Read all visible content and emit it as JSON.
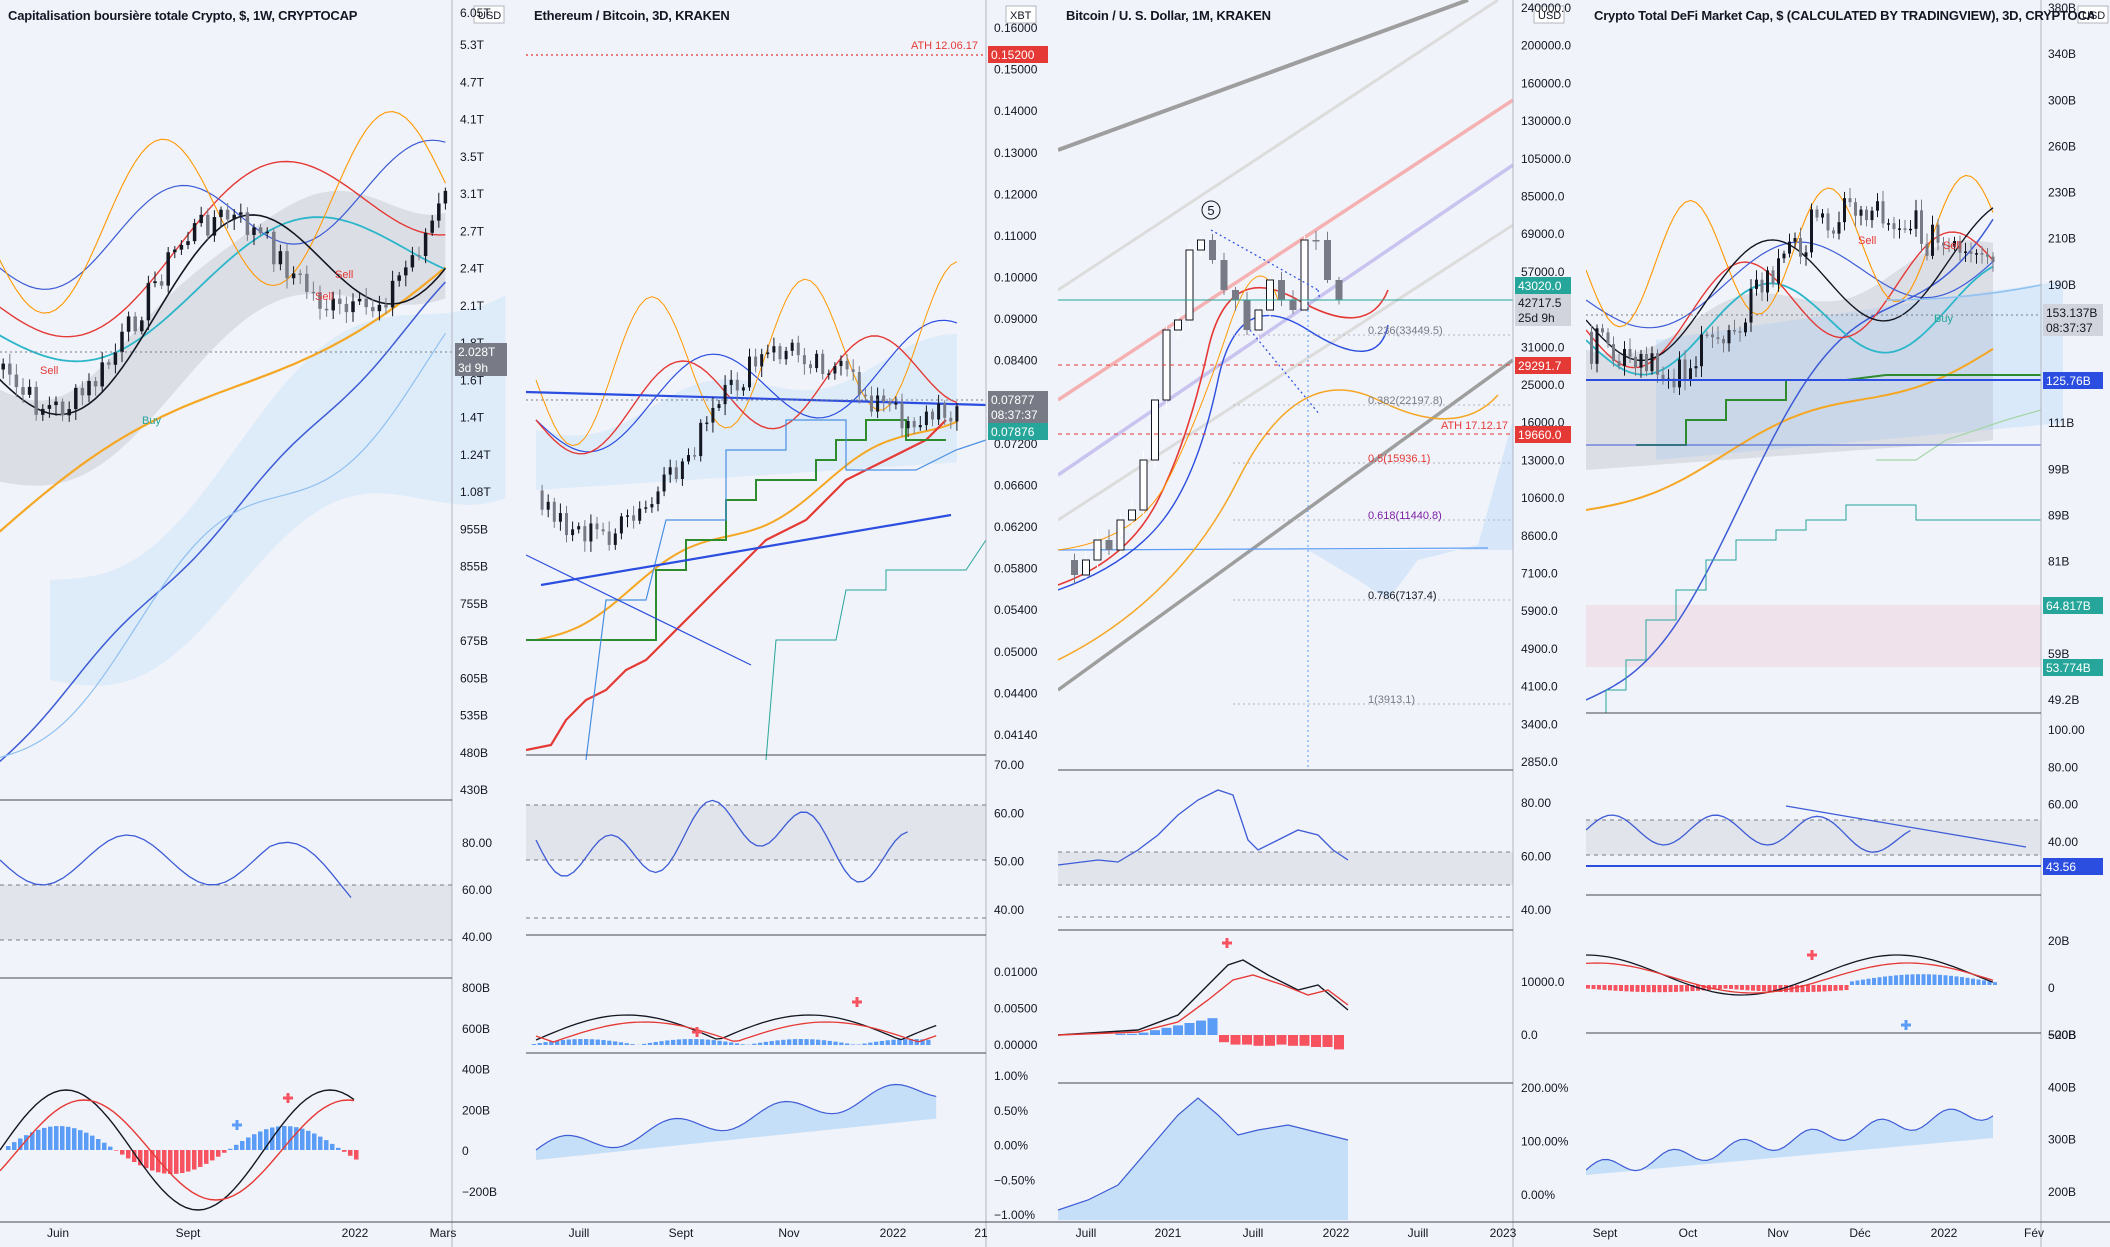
{
  "panels": [
    {
      "title": "Capitalisation boursière totale Crypto, $, 1W, CRYPTOCAP",
      "currency": "USD",
      "price_tag": "2.028T",
      "countdown": "3d 9h",
      "price_axis": [
        "6.05T",
        "5.3T",
        "4.7T",
        "4.1T",
        "3.5T",
        "3.1T",
        "2.7T",
        "2.4T",
        "2.1T",
        "1.8T",
        "1.6T",
        "1.4T",
        "1.24T",
        "1.08T",
        "955B",
        "855B",
        "755B",
        "675B",
        "605B",
        "535B",
        "480B",
        "430B"
      ],
      "osc1_axis": [
        "80.00",
        "60.00",
        "40.00"
      ],
      "osc2_axis": [
        "800B",
        "600B",
        "400B",
        "200B",
        "0",
        "−200B"
      ],
      "time_axis": [
        "Juin",
        "Sept",
        "2022",
        "Mars"
      ],
      "signals": [
        "Sell",
        "Sell",
        "Sell",
        "Buy"
      ]
    },
    {
      "title": "Ethereum / Bitcoin, 3D, KRAKEN",
      "currency": "XBT",
      "ath_label": "ATH 12.06.17",
      "ath_value": "0.15200",
      "price_tag": "0.07877",
      "countdown": "08:37:37",
      "price_tag2": "0.07876",
      "price_axis": [
        "0.16000",
        "0.15000",
        "0.14000",
        "0.13000",
        "0.12000",
        "0.11000",
        "0.10000",
        "0.09000",
        "0.08400",
        "0.07800",
        "0.07200",
        "0.06600",
        "0.06200",
        "0.05800",
        "0.05400",
        "0.05000",
        "0.04400",
        "0.04140"
      ],
      "osc1_axis": [
        "70.00",
        "60.00",
        "50.00",
        "40.00"
      ],
      "osc2_axis": [
        "0.01000",
        "0.00500",
        "0.00000"
      ],
      "osc3_axis": [
        "1.00%",
        "0.50%",
        "0.00%",
        "−0.50%",
        "−1.00%"
      ],
      "time_axis": [
        "Juill",
        "Sept",
        "Nov",
        "2022",
        "21"
      ]
    },
    {
      "title": "Bitcoin / U. S. Dollar, 1M, KRAKEN",
      "currency": "USD",
      "wave_label": "5",
      "price_tag": "43020.0",
      "price_tag_b": "42717.5",
      "countdown": "25d 9h",
      "level1": "29291.7",
      "ath_label": "ATH 17.12.17",
      "level2": "19660.0",
      "fib_labels": [
        "0.236(33449.5)",
        "0.382(22197.8)",
        "0.5(15936.1)",
        "0.618(11440.8)",
        "0.786(7137.4)",
        "1(3913.1)"
      ],
      "price_axis": [
        "240000.0",
        "200000.0",
        "160000.0",
        "130000.0",
        "105000.0",
        "85000.0",
        "69000.0",
        "57000.0",
        "38000.0",
        "31000.0",
        "25000.0",
        "16000.0",
        "13000.0",
        "10600.0",
        "8600.0",
        "7100.0",
        "5900.0",
        "4900.0",
        "4100.0",
        "3400.0",
        "2850.0"
      ],
      "osc1_axis": [
        "80.00",
        "60.00",
        "40.00"
      ],
      "osc2_axis": [
        "10000.0",
        "0.0"
      ],
      "osc3_axis": [
        "200.00%",
        "100.00%",
        "0.00%"
      ],
      "time_axis": [
        "Juill",
        "2021",
        "Juill",
        "2022",
        "Juill",
        "2023"
      ]
    },
    {
      "title": "Crypto Total DeFi Market Cap, $ (CALCULATED BY TRADINGVIEW), 3D, CRYPTOCAP",
      "currency": "USD",
      "price_tag": "153.137B",
      "countdown": "08:37:37",
      "level1": "125.76B",
      "level2": "64.817B",
      "level3": "53.774B",
      "signals": [
        "Sell",
        "Sell",
        "Buy"
      ],
      "price_axis": [
        "380B",
        "340B",
        "300B",
        "260B",
        "230B",
        "210B",
        "190B",
        "170B",
        "135B",
        "111B",
        "99B",
        "89B",
        "81B",
        "73B",
        "59B",
        "49.2B"
      ],
      "osc1_axis": [
        "100.00",
        "80.00",
        "60.00",
        "40.00"
      ],
      "osc1_tag": "43.56",
      "osc2_axis": [
        "20B",
        "0",
        "−20B"
      ],
      "osc3_axis": [
        "500B",
        "400B",
        "300B",
        "200B"
      ],
      "time_axis": [
        "Sept",
        "Oct",
        "Nov",
        "Déc",
        "2022",
        "Fév"
      ]
    }
  ]
}
